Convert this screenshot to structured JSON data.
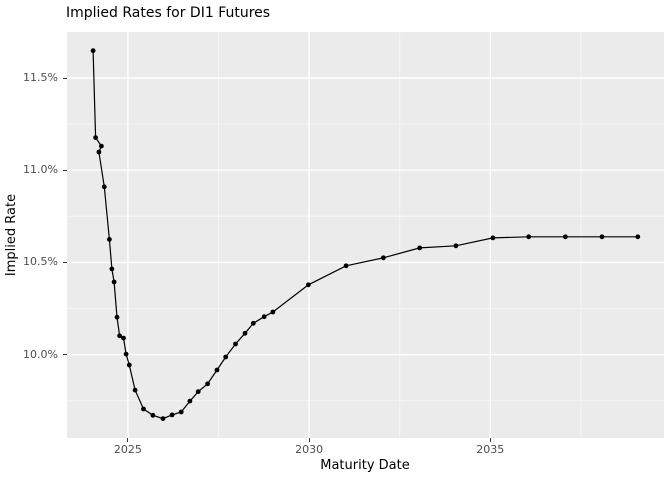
{
  "chart_data": {
    "type": "line",
    "title": "Implied Rates for DI1 Futures",
    "xlabel": "Maturity Date",
    "ylabel": "Implied Rate",
    "xlim": [
      2023.32,
      2039.8
    ],
    "ylim": [
      9.548,
      11.748
    ],
    "legend_position": "none",
    "grid": true,
    "x_axis": {
      "tick_values": [
        2025,
        2030,
        2035
      ],
      "tick_labels": [
        "2025",
        "2030",
        "2035"
      ],
      "minor_ticks": [
        2027.5,
        2032.5,
        2037.5
      ]
    },
    "y_axis": {
      "tick_values": [
        11.5,
        11.0,
        10.5,
        10.0
      ],
      "tick_labels": [
        "11.5%",
        "11.0%",
        "10.5%",
        "10.0%"
      ],
      "minor_ticks": [
        11.25,
        10.75,
        10.25,
        9.75
      ]
    },
    "series": [
      {
        "name": "implied_rate",
        "points": [
          [
            2024.04,
            11.648
          ],
          [
            2024.11,
            11.177
          ],
          [
            2024.27,
            11.131
          ],
          [
            2024.2,
            11.099
          ],
          [
            2024.35,
            10.91
          ],
          [
            2024.49,
            10.625
          ],
          [
            2024.56,
            10.465
          ],
          [
            2024.62,
            10.394
          ],
          [
            2024.7,
            10.203
          ],
          [
            2024.77,
            10.102
          ],
          [
            2024.88,
            10.09
          ],
          [
            2024.95,
            10.003
          ],
          [
            2025.04,
            9.944
          ],
          [
            2025.2,
            9.808
          ],
          [
            2025.43,
            9.705
          ],
          [
            2025.69,
            9.671
          ],
          [
            2025.97,
            9.653
          ],
          [
            2026.22,
            9.673
          ],
          [
            2026.47,
            9.689
          ],
          [
            2026.71,
            9.748
          ],
          [
            2026.94,
            9.799
          ],
          [
            2027.2,
            9.842
          ],
          [
            2027.46,
            9.917
          ],
          [
            2027.7,
            9.987
          ],
          [
            2027.97,
            10.058
          ],
          [
            2028.23,
            10.116
          ],
          [
            2028.46,
            10.17
          ],
          [
            2028.76,
            10.206
          ],
          [
            2029.0,
            10.231
          ],
          [
            2029.98,
            10.379
          ],
          [
            2031.02,
            10.482
          ],
          [
            2032.05,
            10.525
          ],
          [
            2033.05,
            10.579
          ],
          [
            2034.05,
            10.59
          ],
          [
            2035.07,
            10.633
          ],
          [
            2036.06,
            10.639
          ],
          [
            2037.07,
            10.639
          ],
          [
            2038.08,
            10.639
          ],
          [
            2039.07,
            10.639
          ]
        ]
      }
    ],
    "style": {
      "panel_bg": "#EBEBEB",
      "grid_major": "#FFFFFF",
      "grid_minor": "#FFFFFF",
      "line": "#000000",
      "point": "#000000",
      "tick_text": "#4D4D4D",
      "tick_mark": "#333333",
      "title_text": "#000000"
    }
  }
}
